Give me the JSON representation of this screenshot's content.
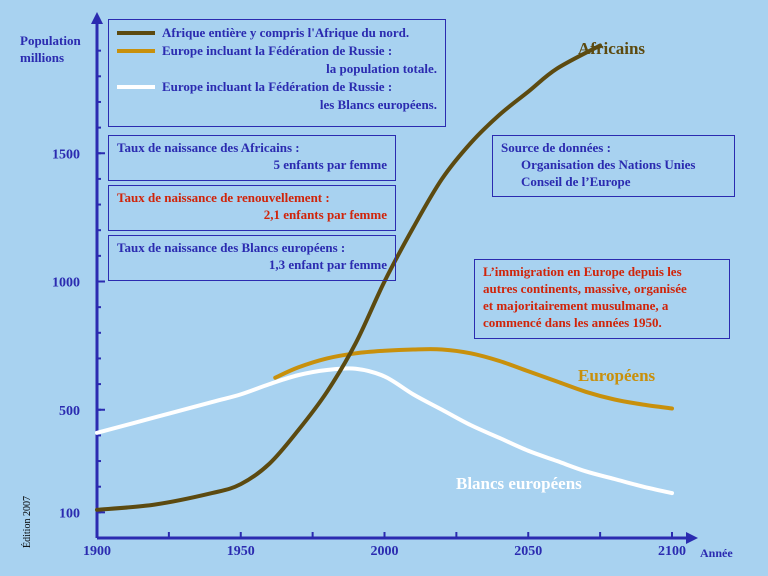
{
  "chart_data": {
    "type": "line",
    "ylabel_lines": [
      "Population",
      "millions"
    ],
    "xlabel": "Année",
    "x_ticks": [
      1900,
      1950,
      2000,
      2050,
      2100
    ],
    "y_ticks": [
      100,
      500,
      1000,
      1500
    ],
    "xlim": [
      1900,
      2100
    ],
    "ylim": [
      0,
      1920
    ],
    "series": [
      {
        "key": "africains",
        "name": "Africains",
        "color": "#5c4a10",
        "points": [
          [
            1900,
            110
          ],
          [
            1920,
            130
          ],
          [
            1940,
            175
          ],
          [
            1950,
            210
          ],
          [
            1960,
            290
          ],
          [
            1970,
            420
          ],
          [
            1980,
            570
          ],
          [
            1990,
            760
          ],
          [
            2000,
            1000
          ],
          [
            2010,
            1210
          ],
          [
            2020,
            1400
          ],
          [
            2030,
            1540
          ],
          [
            2040,
            1650
          ],
          [
            2050,
            1740
          ],
          [
            2060,
            1830
          ],
          [
            2075,
            1920
          ]
        ]
      },
      {
        "key": "europeens",
        "name": "Européens",
        "color": "#c8900c",
        "points": [
          [
            1962,
            625
          ],
          [
            1970,
            665
          ],
          [
            1980,
            700
          ],
          [
            1990,
            720
          ],
          [
            2000,
            730
          ],
          [
            2010,
            735
          ],
          [
            2020,
            735
          ],
          [
            2030,
            720
          ],
          [
            2040,
            690
          ],
          [
            2050,
            650
          ],
          [
            2060,
            610
          ],
          [
            2070,
            570
          ],
          [
            2080,
            540
          ],
          [
            2090,
            520
          ],
          [
            2100,
            505
          ]
        ]
      },
      {
        "key": "blancs",
        "name": "Blancs européens",
        "color": "#ffffff",
        "points": [
          [
            1900,
            410
          ],
          [
            1920,
            470
          ],
          [
            1940,
            530
          ],
          [
            1950,
            560
          ],
          [
            1960,
            600
          ],
          [
            1970,
            635
          ],
          [
            1980,
            655
          ],
          [
            1990,
            660
          ],
          [
            2000,
            630
          ],
          [
            2010,
            560
          ],
          [
            2020,
            500
          ],
          [
            2030,
            440
          ],
          [
            2040,
            390
          ],
          [
            2050,
            340
          ],
          [
            2060,
            300
          ],
          [
            2070,
            260
          ],
          [
            2080,
            230
          ],
          [
            2090,
            200
          ],
          [
            2100,
            175
          ]
        ]
      }
    ]
  },
  "legend": {
    "afrique": "Afrique entière y compris l'Afrique du nord.",
    "europe_line1": "Europe incluant la Fédération de Russie :",
    "europe_line2": "la population totale.",
    "blancs_line1": "Europe incluant la Fédération de Russie :",
    "blancs_line2": "les Blancs européens."
  },
  "boxes": {
    "africains_rate_1": "Taux de naissance des Africains :",
    "africains_rate_2": "5 enfants par femme",
    "renewal_1": "Taux de naissance de renouvellement :",
    "renewal_2": "2,1 enfants par femme",
    "blancs_rate_1": "Taux de naissance des Blancs européens :",
    "blancs_rate_2": "1,3 enfant par femme",
    "source_1": "Source de données :",
    "source_2": "Organisation des Nations Unies",
    "source_3": "Conseil de l’Europe",
    "immigration_1": "L’immigration en Europe depuis les",
    "immigration_2": "autres continents, massive, organisée",
    "immigration_3": "et majoritairement musulmane, a",
    "immigration_4": "commencé dans les années 1950."
  },
  "edition": "Édition 2007",
  "colors": {
    "axis": "#2b2bb0",
    "africains": "#5c4a10",
    "europeens": "#c8900c",
    "blancs": "#ffffff",
    "red_text": "#d0240a",
    "background": "#a8d2f0"
  }
}
